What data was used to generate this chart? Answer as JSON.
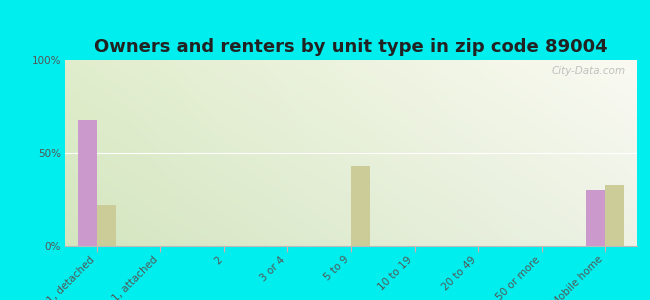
{
  "title": "Owners and renters by unit type in zip code 89004",
  "categories": [
    "1, detached",
    "1, attached",
    "2",
    "3 or 4",
    "5 to 9",
    "10 to 19",
    "20 to 49",
    "50 or more",
    "Mobile home"
  ],
  "owner_values": [
    68,
    0,
    0,
    0,
    0,
    0,
    0,
    0,
    30
  ],
  "renter_values": [
    22,
    0,
    0,
    0,
    43,
    0,
    0,
    0,
    33
  ],
  "owner_color": "#cc99cc",
  "renter_color": "#cccc99",
  "background_outer": "#00eeee",
  "ylabel_ticks": [
    "0%",
    "50%",
    "100%"
  ],
  "ytick_values": [
    0,
    50,
    100
  ],
  "ylim": [
    0,
    100
  ],
  "bar_width": 0.3,
  "title_fontsize": 13,
  "tick_fontsize": 7.5,
  "legend_fontsize": 9,
  "watermark": "City-Data.com"
}
